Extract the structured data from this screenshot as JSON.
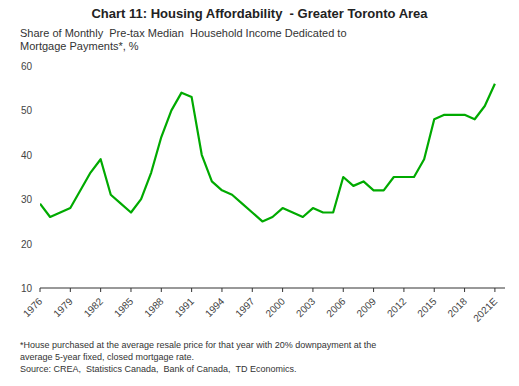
{
  "chart_data": {
    "type": "line",
    "title": "Chart 11: Housing Affordability  - Greater Toronto Area",
    "subtitle": "Share of Monthly  Pre-tax Median  Household Income Dedicated to\nMortgage Payments*, %",
    "footnote": "*House purchased at the average resale price for that year with 20% downpayment at the\naverage 5-year fixed, closed mortgage rate.\nSource: CREA,  Statistics Canada,  Bank of Canada,  TD Economics.",
    "color": "#00AA00",
    "grid": false,
    "xlim": [
      1976,
      2022
    ],
    "xticks": [
      1976,
      1979,
      1982,
      1985,
      1988,
      1991,
      1994,
      1997,
      2000,
      2003,
      2006,
      2009,
      2012,
      2015,
      2018,
      {
        "value": 2021,
        "label": "2021E"
      }
    ],
    "ylim": [
      10,
      60
    ],
    "yticks": [
      10,
      20,
      30,
      40,
      50,
      60
    ],
    "x": [
      1976,
      1977,
      1978,
      1979,
      1980,
      1981,
      1982,
      1983,
      1984,
      1985,
      1986,
      1987,
      1988,
      1989,
      1990,
      1991,
      1992,
      1993,
      1994,
      1995,
      1996,
      1997,
      1998,
      1999,
      2000,
      2001,
      2002,
      2003,
      2004,
      2005,
      2006,
      2007,
      2008,
      2009,
      2010,
      2011,
      2012,
      2013,
      2014,
      2015,
      2016,
      2017,
      2018,
      2019,
      2020,
      2021
    ],
    "values": [
      29,
      26,
      27,
      28,
      32,
      36,
      39,
      31,
      29,
      27,
      30,
      36,
      44,
      50,
      54,
      53,
      40,
      34,
      32,
      31,
      29,
      27,
      25,
      26,
      28,
      27,
      26,
      28,
      27,
      27,
      35,
      33,
      34,
      32,
      32,
      35,
      35,
      35,
      39,
      48,
      49,
      49,
      49,
      48,
      51,
      56
    ]
  }
}
